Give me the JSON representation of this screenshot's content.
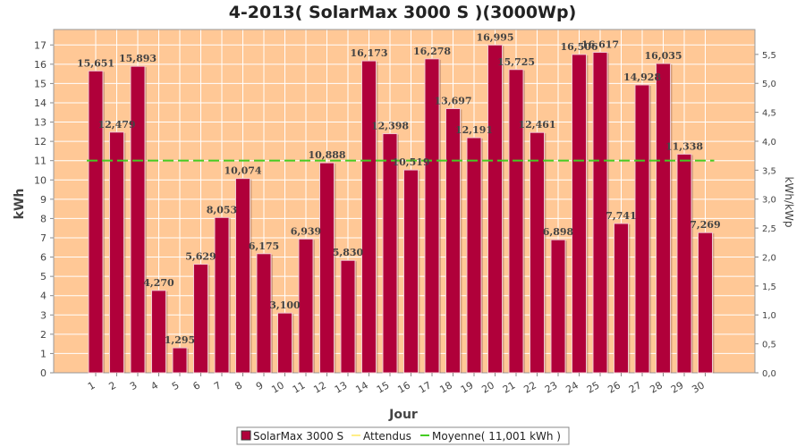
{
  "chart_data": {
    "type": "bar",
    "title": "4-2013( SolarMax 3000 S )(3000Wp)",
    "xlabel": "Jour",
    "ylabel": "kWh",
    "y2label": "kWh/kWp",
    "ylim": [
      0,
      17.8
    ],
    "y2lim": [
      0,
      5.93
    ],
    "yticks": [
      "0",
      "1",
      "2",
      "3",
      "4",
      "5",
      "6",
      "7",
      "8",
      "9",
      "10",
      "11",
      "12",
      "13",
      "14",
      "15",
      "16",
      "17"
    ],
    "y2ticks": [
      "0,0",
      "0,5",
      "1,0",
      "1,5",
      "2,0",
      "2,5",
      "3,0",
      "3,5",
      "4,0",
      "4,5",
      "5,0",
      "5,5"
    ],
    "categories": [
      "1",
      "2",
      "3",
      "4",
      "5",
      "6",
      "7",
      "8",
      "9",
      "10",
      "11",
      "12",
      "13",
      "14",
      "15",
      "16",
      "17",
      "18",
      "19",
      "20",
      "21",
      "22",
      "23",
      "24",
      "25",
      "26",
      "27",
      "28",
      "29",
      "30"
    ],
    "series": [
      {
        "name": "SolarMax 3000 S",
        "color": "#b0003a",
        "values": [
          15.651,
          12.479,
          15.893,
          4.27,
          1.295,
          5.629,
          8.053,
          10.074,
          6.175,
          3.1,
          6.939,
          10.888,
          5.83,
          16.173,
          12.398,
          10.519,
          16.278,
          13.697,
          12.191,
          16.995,
          15.725,
          12.461,
          6.898,
          16.506,
          16.617,
          7.741,
          14.928,
          16.035,
          11.338,
          7.269
        ],
        "labels": [
          "15,651",
          "12,479",
          "15,893",
          "4,270",
          "1,295",
          "5,629",
          "8,053",
          "10,074",
          "6,175",
          "3,100",
          "6,939",
          "10,888",
          "5,830",
          "16,173",
          "12,398",
          "10,519",
          "16,278",
          "13,697",
          "12,191",
          "16,995",
          "15,725",
          "12,461",
          "6,898",
          "16,506",
          "16,617",
          "7,741",
          "14,928",
          "16,035",
          "11,338",
          "7,269"
        ]
      }
    ],
    "average": {
      "name": "Moyenne( 11,001 kWh )",
      "value": 11.001,
      "color": "#44cc22"
    },
    "expected": {
      "name": "Attendus",
      "color": "#ffee88"
    },
    "plot_background": "#ffc896",
    "grid": true,
    "legend_position": "bottom"
  }
}
